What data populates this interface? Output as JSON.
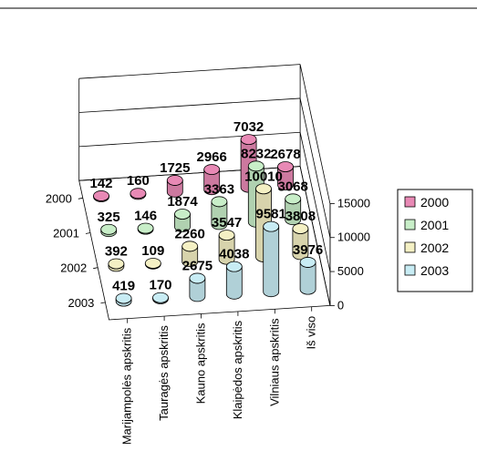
{
  "chart_data": {
    "type": "bar",
    "subtype": "3d-cylinder",
    "categories": [
      "Marijampolės apskritis",
      "Tauragės apskritis",
      "Kauno apskritis",
      "Klaipėdos apskritis",
      "Vilniaus apskritis",
      "Iš viso"
    ],
    "series": [
      {
        "name": "2000",
        "color": "#e889b5",
        "values": [
          142,
          160,
          1725,
          2966,
          7032,
          2678
        ]
      },
      {
        "name": "2001",
        "color": "#c8eec8",
        "values": [
          325,
          146,
          1874,
          3363,
          8232,
          3068
        ]
      },
      {
        "name": "2002",
        "color": "#f4f0c4",
        "values": [
          392,
          109,
          2260,
          3547,
          10010,
          3808
        ]
      },
      {
        "name": "2003",
        "color": "#c8ecf4",
        "values": [
          419,
          170,
          2675,
          4038,
          9581,
          3976
        ]
      }
    ],
    "z_ticks": [
      "0",
      "5000",
      "10000",
      "15000"
    ],
    "zlim": [
      0,
      15000
    ],
    "legend_position": "right"
  }
}
